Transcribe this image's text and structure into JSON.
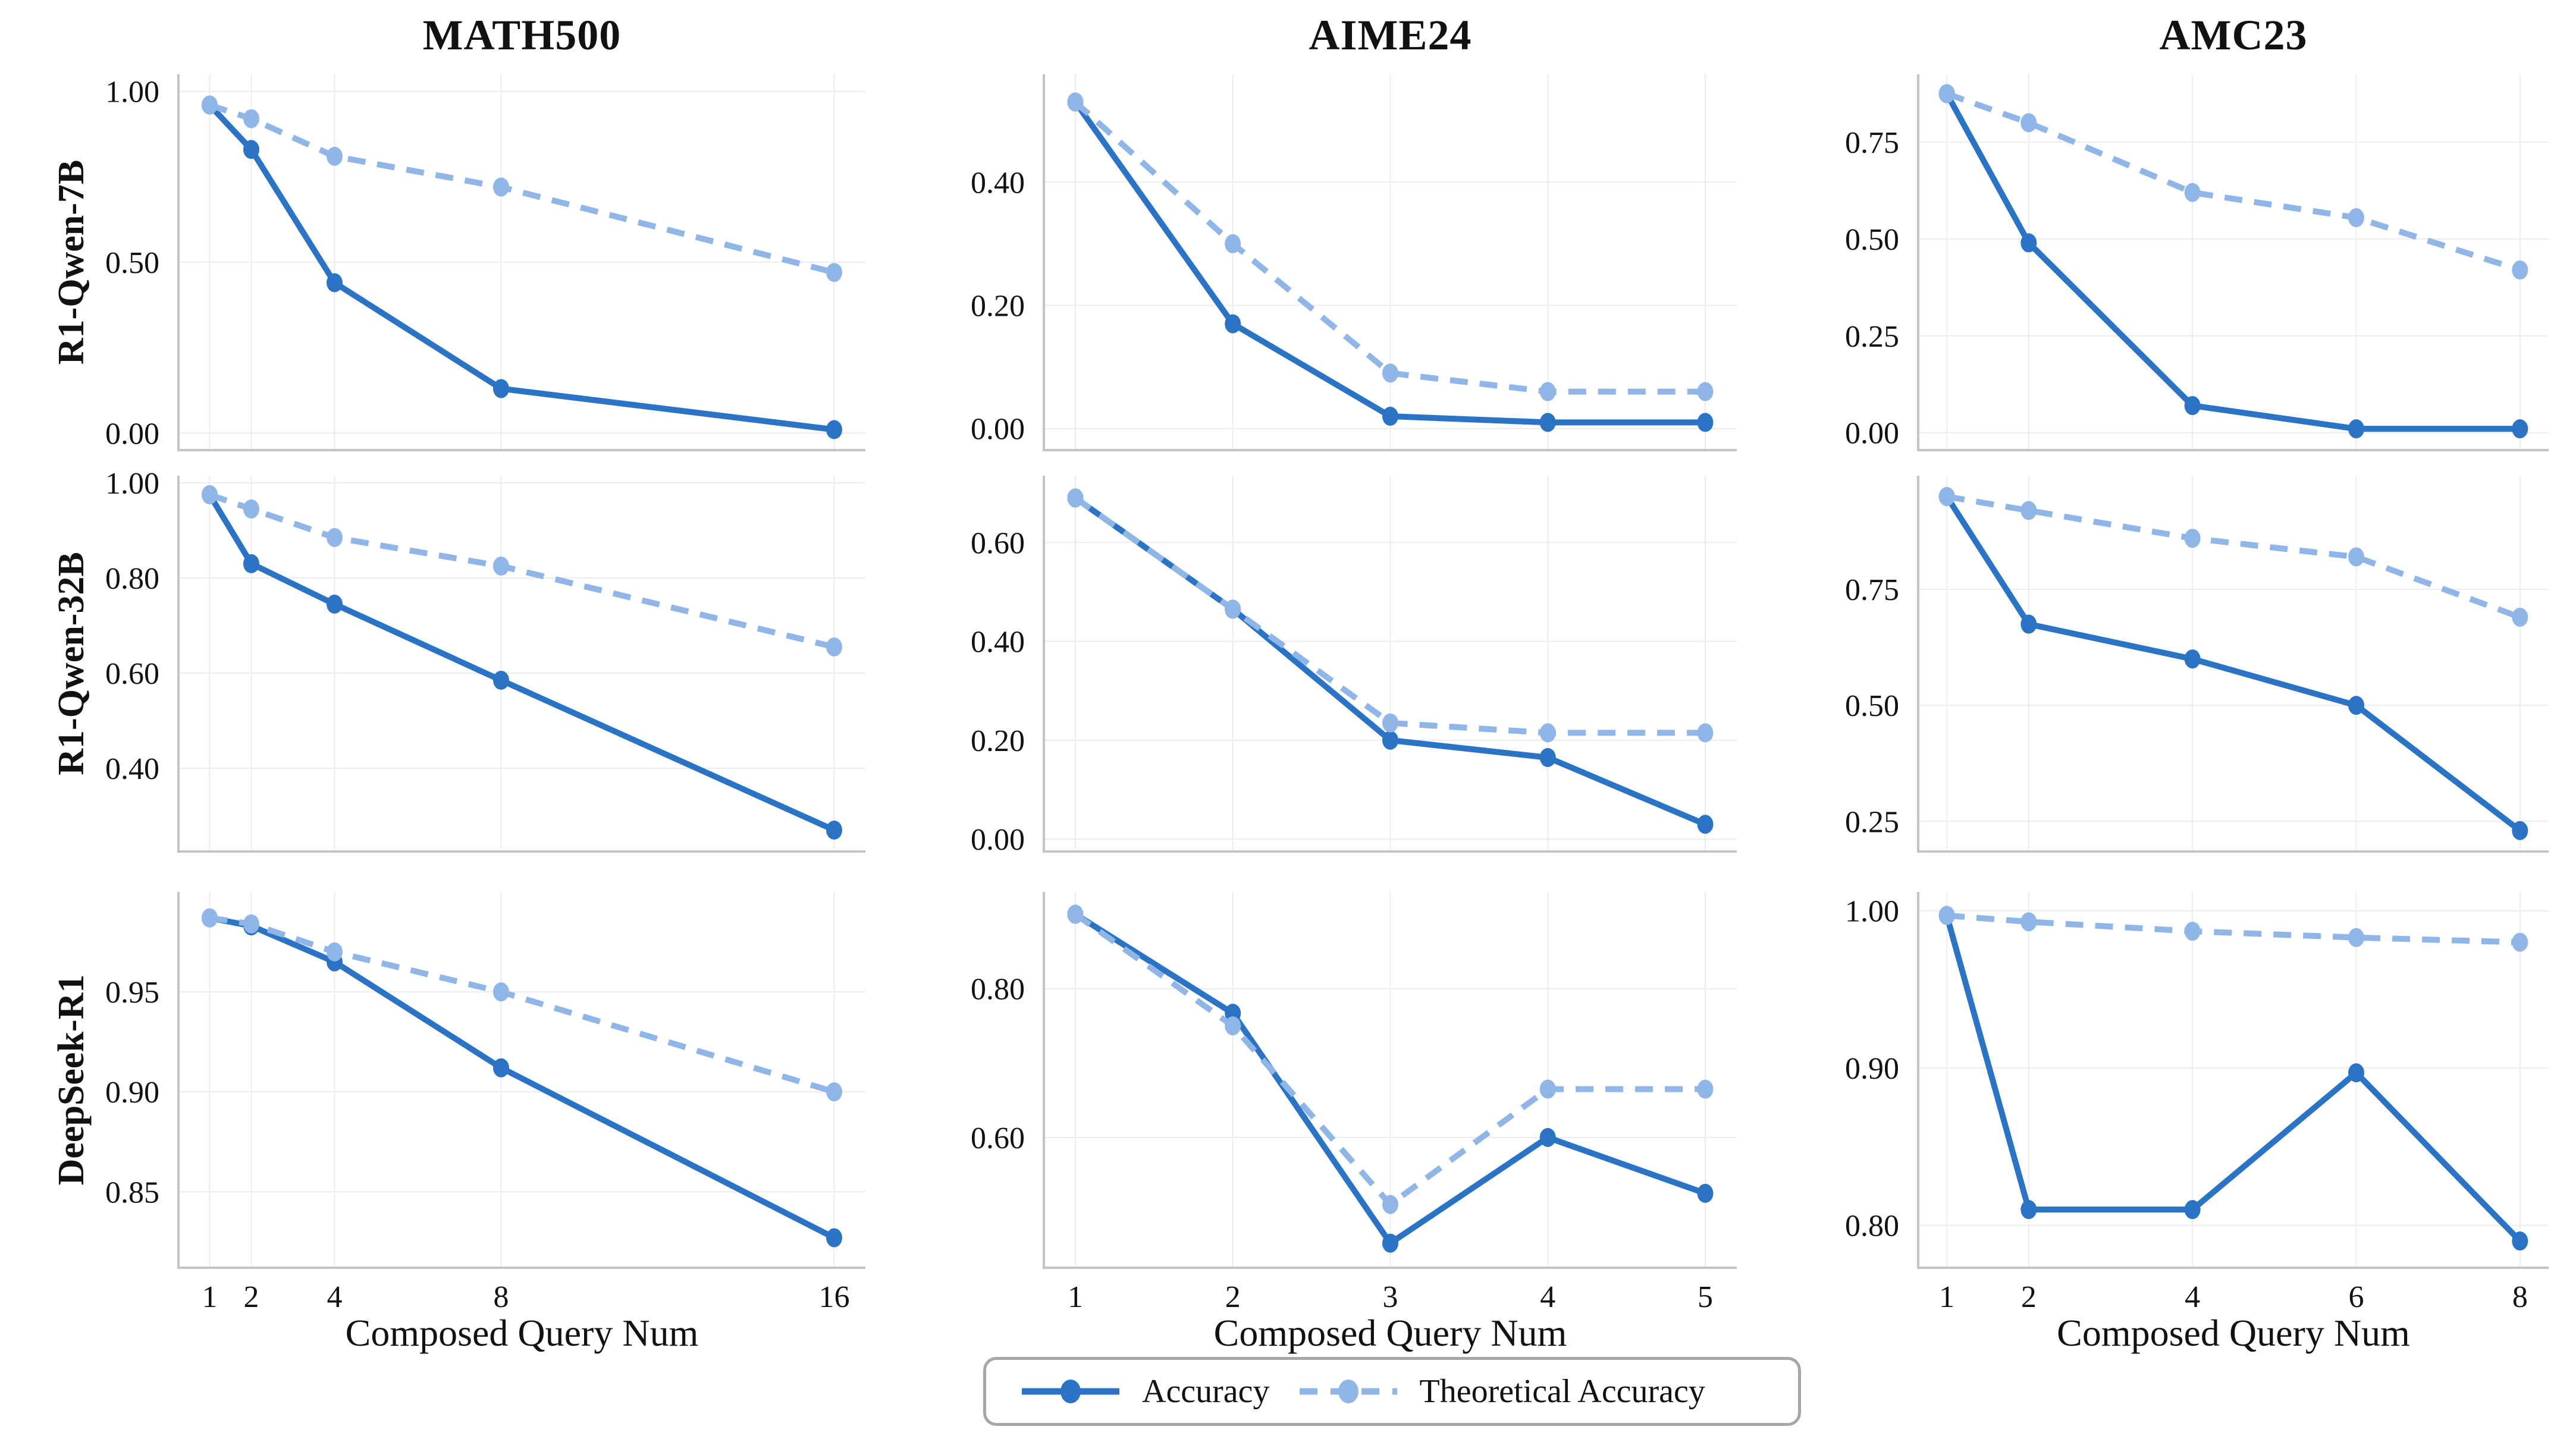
{
  "figure": {
    "titles": [
      "MATH500",
      "AIME24",
      "AMC23"
    ],
    "row_labels": [
      "R1-Qwen-7B",
      "R1-Qwen-32B",
      "DeepSeek-R1"
    ],
    "xlabel": "Composed Query Num",
    "legend": {
      "accuracy_label": "Accuracy",
      "theoretical_label": "Theoretical Accuracy"
    },
    "colors": {
      "accuracy": "#2a73c5",
      "theoretical": "#90b6e7",
      "grid": "#ececef",
      "spine": "#c3c3c8",
      "text": "#111111"
    }
  },
  "chart_data": [
    {
      "type": "line",
      "dataset": "MATH500",
      "model": "R1-Qwen-7B",
      "x": [
        1,
        2,
        4,
        8,
        16
      ],
      "xlim": [
        0.25,
        16.75
      ],
      "xticks": [
        1,
        2,
        4,
        8,
        16
      ],
      "xtick_labels": [
        "1",
        "2",
        "4",
        "8",
        "16"
      ],
      "ylim": [
        -0.05,
        1.05
      ],
      "yticks": [
        0.0,
        0.5,
        1.0
      ],
      "ytick_labels": [
        "0.00",
        "0.50",
        "1.00"
      ],
      "series": [
        {
          "name": "Accuracy",
          "values": [
            0.96,
            0.83,
            0.44,
            0.13,
            0.01
          ]
        },
        {
          "name": "Theoretical Accuracy",
          "values": [
            0.96,
            0.92,
            0.81,
            0.72,
            0.47
          ]
        }
      ]
    },
    {
      "type": "line",
      "dataset": "AIME24",
      "model": "R1-Qwen-7B",
      "x": [
        1,
        2,
        3,
        4,
        5
      ],
      "xlim": [
        0.8,
        5.2
      ],
      "xticks": [
        1,
        2,
        3,
        4,
        5
      ],
      "xtick_labels": [
        "1",
        "2",
        "3",
        "4",
        "5"
      ],
      "ylim": [
        -0.035,
        0.575
      ],
      "yticks": [
        0.0,
        0.2,
        0.4
      ],
      "ytick_labels": [
        "0.00",
        "0.20",
        "0.40"
      ],
      "series": [
        {
          "name": "Accuracy",
          "values": [
            0.53,
            0.17,
            0.02,
            0.01,
            0.01
          ]
        },
        {
          "name": "Theoretical Accuracy",
          "values": [
            0.53,
            0.3,
            0.09,
            0.06,
            0.06
          ]
        }
      ]
    },
    {
      "type": "line",
      "dataset": "AMC23",
      "model": "R1-Qwen-7B",
      "x": [
        1,
        2,
        4,
        6,
        8
      ],
      "xlim": [
        0.65,
        8.35
      ],
      "xticks": [
        1,
        2,
        4,
        6,
        8
      ],
      "xtick_labels": [
        "1",
        "2",
        "4",
        "6",
        "8"
      ],
      "ylim": [
        -0.045,
        0.925
      ],
      "yticks": [
        0.0,
        0.25,
        0.5,
        0.75
      ],
      "ytick_labels": [
        "0.00",
        "0.25",
        "0.50",
        "0.75"
      ],
      "series": [
        {
          "name": "Accuracy",
          "values": [
            0.875,
            0.49,
            0.07,
            0.01,
            0.01
          ]
        },
        {
          "name": "Theoretical Accuracy",
          "values": [
            0.875,
            0.8,
            0.62,
            0.555,
            0.42
          ]
        }
      ]
    },
    {
      "type": "line",
      "dataset": "MATH500",
      "model": "R1-Qwen-32B",
      "x": [
        1,
        2,
        4,
        8,
        16
      ],
      "xlim": [
        0.25,
        16.75
      ],
      "xticks": [
        1,
        2,
        4,
        8,
        16
      ],
      "xtick_labels": [
        "1",
        "2",
        "4",
        "8",
        "16"
      ],
      "ylim": [
        0.225,
        1.015
      ],
      "yticks": [
        0.4,
        0.6,
        0.8,
        1.0
      ],
      "ytick_labels": [
        "0.40",
        "0.60",
        "0.80",
        "1.00"
      ],
      "series": [
        {
          "name": "Accuracy",
          "values": [
            0.975,
            0.83,
            0.745,
            0.585,
            0.27
          ]
        },
        {
          "name": "Theoretical Accuracy",
          "values": [
            0.975,
            0.945,
            0.885,
            0.825,
            0.655
          ]
        }
      ]
    },
    {
      "type": "line",
      "dataset": "AIME24",
      "model": "R1-Qwen-32B",
      "x": [
        1,
        2,
        3,
        4,
        5
      ],
      "xlim": [
        0.8,
        5.2
      ],
      "ylim": [
        -0.025,
        0.735
      ],
      "xticks": [
        1,
        2,
        3,
        4,
        5
      ],
      "xtick_labels": [
        "1",
        "2",
        "3",
        "4",
        "5"
      ],
      "yticks": [
        0.0,
        0.2,
        0.4,
        0.6
      ],
      "ytick_labels": [
        "0.00",
        "0.20",
        "0.40",
        "0.60"
      ],
      "series": [
        {
          "name": "Accuracy",
          "values": [
            0.69,
            0.465,
            0.2,
            0.165,
            0.03
          ]
        },
        {
          "name": "Theoretical Accuracy",
          "values": [
            0.69,
            0.465,
            0.235,
            0.215,
            0.215
          ]
        }
      ]
    },
    {
      "type": "line",
      "dataset": "AMC23",
      "model": "R1-Qwen-32B",
      "x": [
        1,
        2,
        4,
        6,
        8
      ],
      "xlim": [
        0.65,
        8.35
      ],
      "xticks": [
        1,
        2,
        4,
        6,
        8
      ],
      "xtick_labels": [
        "1",
        "2",
        "4",
        "6",
        "8"
      ],
      "ylim": [
        0.185,
        0.995
      ],
      "yticks": [
        0.25,
        0.5,
        0.75
      ],
      "ytick_labels": [
        "0.25",
        "0.50",
        "0.75"
      ],
      "series": [
        {
          "name": "Accuracy",
          "values": [
            0.95,
            0.675,
            0.6,
            0.5,
            0.23
          ]
        },
        {
          "name": "Theoretical Accuracy",
          "values": [
            0.95,
            0.92,
            0.86,
            0.82,
            0.69
          ]
        }
      ]
    },
    {
      "type": "line",
      "dataset": "MATH500",
      "model": "DeepSeek-R1",
      "x": [
        1,
        2,
        4,
        8,
        16
      ],
      "xlim": [
        0.25,
        16.75
      ],
      "xticks": [
        1,
        2,
        4,
        8,
        16
      ],
      "xtick_labels": [
        "1",
        "2",
        "4",
        "8",
        "16"
      ],
      "ylim": [
        0.812,
        1.0
      ],
      "yticks": [
        0.85,
        0.9,
        0.95
      ],
      "ytick_labels": [
        "0.85",
        "0.90",
        "0.95"
      ],
      "series": [
        {
          "name": "Accuracy",
          "values": [
            0.987,
            0.983,
            0.965,
            0.912,
            0.827
          ]
        },
        {
          "name": "Theoretical Accuracy",
          "values": [
            0.987,
            0.984,
            0.97,
            0.95,
            0.9
          ]
        }
      ]
    },
    {
      "type": "line",
      "dataset": "AIME24",
      "model": "DeepSeek-R1",
      "x": [
        1,
        2,
        3,
        4,
        5
      ],
      "xlim": [
        0.8,
        5.2
      ],
      "xticks": [
        1,
        2,
        3,
        4,
        5
      ],
      "xtick_labels": [
        "1",
        "2",
        "3",
        "4",
        "5"
      ],
      "ylim": [
        0.425,
        0.93
      ],
      "yticks": [
        0.6,
        0.8
      ],
      "ytick_labels": [
        "0.60",
        "0.80"
      ],
      "series": [
        {
          "name": "Accuracy",
          "values": [
            0.9,
            0.767,
            0.458,
            0.6,
            0.525
          ]
        },
        {
          "name": "Theoretical Accuracy",
          "values": [
            0.9,
            0.75,
            0.51,
            0.665,
            0.665
          ]
        }
      ]
    },
    {
      "type": "line",
      "dataset": "AMC23",
      "model": "DeepSeek-R1",
      "x": [
        1,
        2,
        4,
        6,
        8
      ],
      "xlim": [
        0.65,
        8.35
      ],
      "xticks": [
        1,
        2,
        4,
        6,
        8
      ],
      "xtick_labels": [
        "1",
        "2",
        "4",
        "6",
        "8"
      ],
      "ylim": [
        0.773,
        1.012
      ],
      "yticks": [
        0.8,
        0.9,
        1.0
      ],
      "ytick_labels": [
        "0.80",
        "0.90",
        "1.00"
      ],
      "series": [
        {
          "name": "Accuracy",
          "values": [
            0.997,
            0.81,
            0.81,
            0.897,
            0.79
          ]
        },
        {
          "name": "Theoretical Accuracy",
          "values": [
            0.997,
            0.993,
            0.987,
            0.983,
            0.98
          ]
        }
      ]
    }
  ]
}
